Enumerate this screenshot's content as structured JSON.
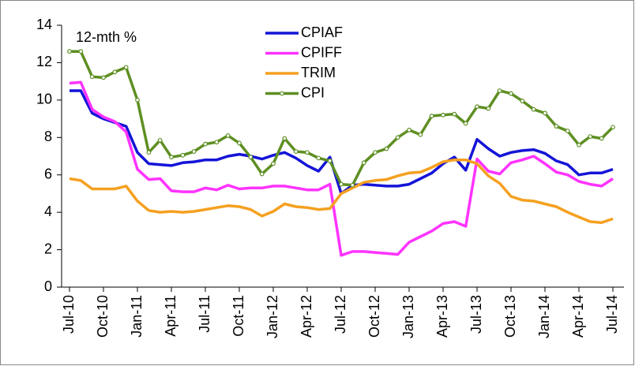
{
  "chart_data": {
    "type": "line",
    "annotation": "12-mth %",
    "categories": [
      "Jul-10",
      null,
      null,
      "Oct-10",
      null,
      null,
      "Jan-11",
      null,
      null,
      "Apr-11",
      null,
      null,
      "Jul-11",
      null,
      null,
      "Oct-11",
      null,
      null,
      "Jan-12",
      null,
      null,
      "Apr-12",
      null,
      null,
      "Jul-12",
      null,
      null,
      "Oct-12",
      null,
      null,
      "Jan-13",
      null,
      null,
      "Apr-13",
      null,
      null,
      "Jul-13",
      null,
      null,
      "Oct-13",
      null,
      null,
      "Jan-14",
      null,
      null,
      "Apr-14",
      null,
      null,
      "Jul-14"
    ],
    "series": [
      {
        "name": "CPIAF",
        "color": "#1414d8",
        "values": [
          10.5,
          10.5,
          9.3,
          9.0,
          8.8,
          8.6,
          7.2,
          6.6,
          6.55,
          6.5,
          6.65,
          6.7,
          6.8,
          6.8,
          7.0,
          7.1,
          7.0,
          6.85,
          7.05,
          7.2,
          6.9,
          6.5,
          6.2,
          6.95,
          5.0,
          5.45,
          5.5,
          5.45,
          5.4,
          5.4,
          5.5,
          5.8,
          6.1,
          6.6,
          6.95,
          6.25,
          7.9,
          7.4,
          7.0,
          7.2,
          7.3,
          7.35,
          7.15,
          6.75,
          6.55,
          6.0,
          6.1,
          6.1,
          6.3
        ]
      },
      {
        "name": "CPIFF",
        "color": "#ff33ff",
        "values": [
          10.9,
          10.95,
          9.5,
          9.1,
          8.85,
          8.3,
          6.3,
          5.75,
          5.8,
          5.15,
          5.1,
          5.1,
          5.3,
          5.2,
          5.45,
          5.25,
          5.3,
          5.3,
          5.4,
          5.4,
          5.3,
          5.2,
          5.2,
          5.5,
          1.7,
          1.9,
          1.9,
          1.85,
          1.8,
          1.75,
          2.4,
          2.7,
          3.0,
          3.4,
          3.5,
          3.25,
          6.85,
          6.2,
          6.05,
          6.65,
          6.8,
          7.0,
          6.6,
          6.15,
          6.0,
          5.65,
          5.5,
          5.4,
          5.8
        ]
      },
      {
        "name": "TRIM",
        "color": "#f5a020",
        "values": [
          5.8,
          5.7,
          5.25,
          5.25,
          5.25,
          5.4,
          4.6,
          4.1,
          4.0,
          4.05,
          4.0,
          4.05,
          4.15,
          4.25,
          4.35,
          4.3,
          4.15,
          3.8,
          4.05,
          4.45,
          4.3,
          4.25,
          4.15,
          4.2,
          5.0,
          5.3,
          5.6,
          5.7,
          5.75,
          5.95,
          6.1,
          6.15,
          6.4,
          6.7,
          6.8,
          6.8,
          6.6,
          5.95,
          5.55,
          4.85,
          4.65,
          4.6,
          4.45,
          4.3,
          4.0,
          3.75,
          3.5,
          3.45,
          3.65
        ]
      },
      {
        "name": "CPI",
        "color": "#5e8f22",
        "marker": true,
        "values": [
          12.6,
          12.6,
          11.25,
          11.2,
          11.5,
          11.75,
          10.0,
          7.2,
          7.85,
          6.95,
          7.05,
          7.25,
          7.65,
          7.75,
          8.1,
          7.7,
          6.95,
          6.05,
          6.6,
          7.95,
          7.25,
          7.2,
          6.9,
          6.75,
          5.5,
          5.45,
          6.65,
          7.2,
          7.4,
          8.0,
          8.4,
          8.15,
          9.15,
          9.2,
          9.25,
          8.75,
          9.65,
          9.55,
          10.5,
          10.35,
          9.95,
          9.5,
          9.3,
          8.6,
          8.35,
          7.6,
          8.05,
          7.95,
          8.55
        ]
      }
    ],
    "ylim": [
      0,
      14
    ],
    "yticks": [
      0,
      2,
      4,
      6,
      8,
      10,
      12,
      14
    ]
  }
}
